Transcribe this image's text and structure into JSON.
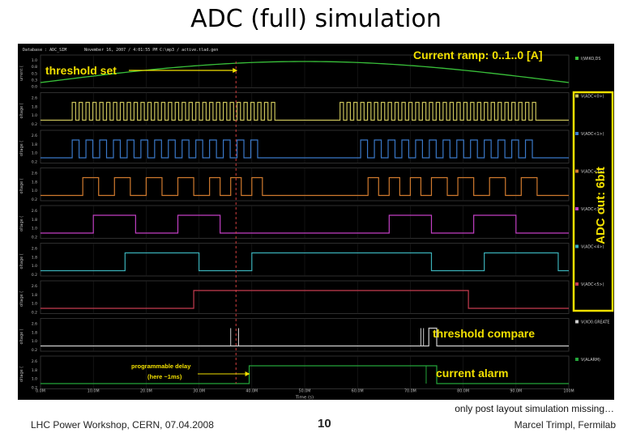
{
  "slide": {
    "title": "ADC (full) simulation",
    "note": "only post layout simulation missing…",
    "footer_left": "LHC Power Workshop, CERN, 07.04.2008",
    "page_number": "10",
    "footer_right": "Marcel Trimpl, Fermilab"
  },
  "sim_header": {
    "database": "Database : ADC_SIM",
    "date": "November 16, 2007 / 4:01:55 PM",
    "file": "C:\\mp3 / active.tlad.gen"
  },
  "annotations": {
    "threshold_set": "threshold set",
    "current_ramp": "Current ramp: 0..1..0 [A]",
    "adc_out": "ADC out: 6bit",
    "threshold_compare": "threshold compare",
    "current_alarm": "current alarm",
    "prog_delay_1": "programmable delay",
    "prog_delay_2": "(here ~1ms)"
  },
  "xaxis": {
    "label": "Time (s)",
    "ticks": [
      "0.0M",
      "10.0M",
      "20.0M",
      "30.0M",
      "40.0M",
      "50.0M",
      "60.0M",
      "70.0M",
      "80.0M",
      "90.0M",
      "100M"
    ]
  },
  "colors": {
    "ramp": "#39c13a",
    "b0": "#c9c25a",
    "b1": "#3a78c8",
    "b2": "#d07a2e",
    "b3": "#c23fc4",
    "b4": "#3ab0b8",
    "b5": "#c53c4f",
    "thr": "#cfcfcf",
    "alarm": "#24a53a",
    "annot": "#f2e000",
    "box": "#f2e000"
  },
  "panels": [
    {
      "key": "ramp",
      "label": "I(WIKO,DS",
      "axis": "urrent (",
      "ticks": [
        "1.0",
        "0.8",
        "0.5",
        "0.3",
        "0.0"
      ]
    },
    {
      "key": "b0",
      "label": "V(ADC<0>)",
      "axis": "oltage (",
      "ticks": [
        "2.6",
        "1.8",
        "1.0",
        "0.2"
      ]
    },
    {
      "key": "b1",
      "label": "V(ADC<1>)",
      "axis": "oltage (",
      "ticks": [
        "2.6",
        "1.8",
        "1.0",
        "0.2"
      ]
    },
    {
      "key": "b2",
      "label": "V(ADC<2>)",
      "axis": "oltage (",
      "ticks": [
        "2.6",
        "1.8",
        "1.0",
        "0.2"
      ]
    },
    {
      "key": "b3",
      "label": "V(ADC<3>)",
      "axis": "oltage (",
      "ticks": [
        "2.6",
        "1.8",
        "1.0",
        "0.2"
      ]
    },
    {
      "key": "b4",
      "label": "V(ADC<4>)",
      "axis": "oltage (",
      "ticks": [
        "2.6",
        "1.8",
        "1.0",
        "0.2"
      ]
    },
    {
      "key": "b5",
      "label": "V(ADC<5>)",
      "axis": "oltage (",
      "ticks": [
        "2.6",
        "1.8",
        "1.0",
        "0.2"
      ]
    },
    {
      "key": "thr",
      "label": "V(XO0.GREATE",
      "axis": "oltage (",
      "ticks": [
        "2.6",
        "1.8",
        "1.0",
        "0.2"
      ]
    },
    {
      "key": "alarm",
      "label": "V(ALARM)",
      "axis": "oltage (",
      "ticks": [
        "2.6",
        "1.8",
        "1.0",
        "0.2"
      ]
    }
  ],
  "waveforms": {
    "ramp_peak_ms": 50,
    "threshold_set_ms": 37,
    "delay_end_ms": 39.5,
    "b0_start_ms": 6,
    "b0_gap_ms": [
      44,
      56
    ],
    "b1_start_ms": 6,
    "b1_gap_ms": [
      40,
      60
    ],
    "b2_pulses_ms": [
      [
        8,
        11
      ],
      [
        14,
        17
      ],
      [
        20,
        23
      ],
      [
        26,
        29
      ],
      [
        32,
        34
      ],
      [
        36,
        38
      ],
      [
        40,
        42
      ],
      [
        62,
        64
      ],
      [
        66,
        68
      ],
      [
        70,
        72
      ],
      [
        74,
        77
      ],
      [
        79,
        82
      ],
      [
        85,
        88
      ],
      [
        91,
        94
      ]
    ],
    "b3_pulses_ms": [
      [
        10,
        18
      ],
      [
        26,
        34
      ],
      [
        66,
        74
      ],
      [
        82,
        90
      ]
    ],
    "b4_pulses_ms": [
      [
        16,
        30
      ],
      [
        40,
        74
      ],
      [
        84,
        98
      ]
    ],
    "b5_pulses_ms": [
      [
        29,
        81
      ]
    ],
    "thr_marks_ms": [
      36,
      37.5,
      72,
      72.5
    ],
    "thr_pulse_ms": [
      73.5,
      75
    ],
    "alarm_pulse_ms": [
      39.5,
      75
    ]
  }
}
